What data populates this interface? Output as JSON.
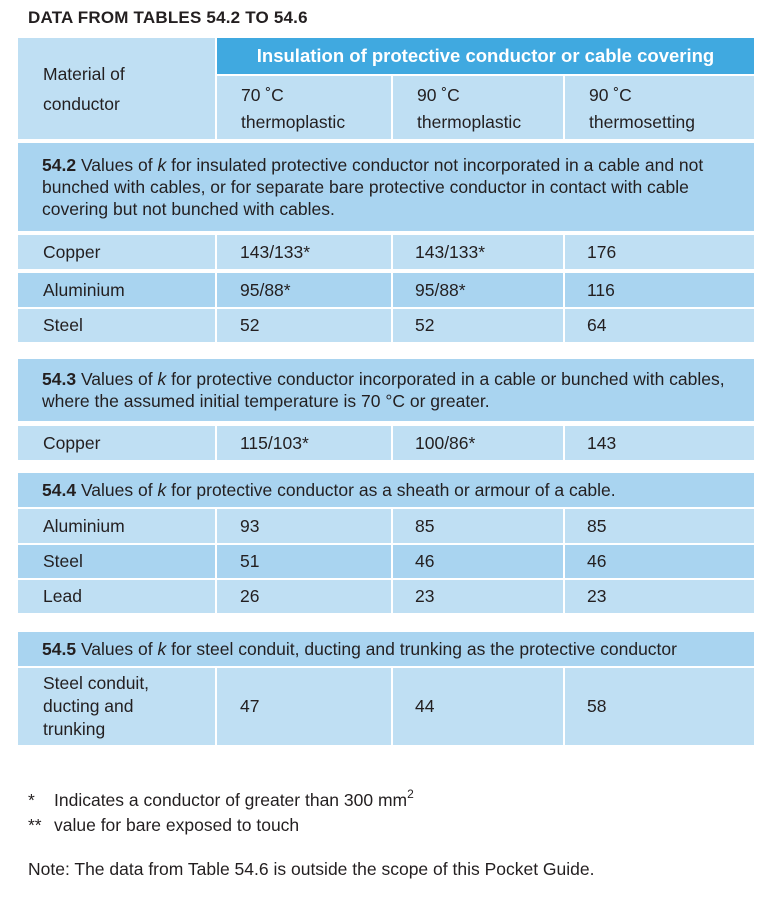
{
  "title": "DATA FROM TABLES 54.2 TO 54.6",
  "header": {
    "material": "Material of conductor",
    "insulation": "Insulation of protective conductor or cable covering",
    "cols": [
      {
        "temp": "70 ˚C",
        "type": "thermoplastic"
      },
      {
        "temp": "90 ˚C",
        "type": "thermoplastic"
      },
      {
        "temp": "90 ˚C",
        "type": "thermosetting"
      }
    ]
  },
  "sections": [
    {
      "num": "54.2",
      "pre": "Values of",
      "k": "k",
      "post": "for insulated protective conductor not incorporated in a cable and not bunched with cables, or for separate bare protective conductor in contact with cable covering but not bunched with cables.",
      "rows": [
        {
          "material": "Copper",
          "values": [
            "143/133*",
            "143/133*",
            "176"
          ]
        },
        {
          "material": "Aluminium",
          "values": [
            "95/88*",
            "95/88*",
            "116"
          ]
        },
        {
          "material": "Steel",
          "values": [
            "52",
            "52",
            "64"
          ]
        }
      ]
    },
    {
      "num": "54.3",
      "pre": "Values of",
      "k": "k",
      "post": "for protective conductor incorporated in a cable or bunched with cables, where the assumed initial temperature is 70 °C or greater.",
      "rows": [
        {
          "material": "Copper",
          "values": [
            "115/103*",
            "100/86*",
            "143"
          ]
        }
      ]
    },
    {
      "num": "54.4",
      "pre": "Values of",
      "k": "k",
      "post": "for protective conductor as a sheath or armour of a cable.",
      "rows": [
        {
          "material": "Aluminium",
          "values": [
            "93",
            "85",
            "85"
          ]
        },
        {
          "material": "Steel",
          "values": [
            "51",
            "46",
            "46"
          ]
        },
        {
          "material": "Lead",
          "values": [
            "26",
            "23",
            "23"
          ]
        }
      ]
    },
    {
      "num": "54.5",
      "pre": "Values of",
      "k": "k",
      "post": "for steel conduit, ducting and trunking as the protective conductor",
      "rows": [
        {
          "material": "Steel conduit, ducting and trunking",
          "values": [
            "47",
            "44",
            "58"
          ]
        }
      ]
    }
  ],
  "footnotes": {
    "f1_mark": "*",
    "f1_text": "Indicates a conductor of greater than 300 mm",
    "f1_sup": "2",
    "f2_mark": "**",
    "f2_text": "value for bare exposed to touch",
    "note": "Note: The data from Table 54.6 is outside the scope of this Pocket Guide."
  }
}
